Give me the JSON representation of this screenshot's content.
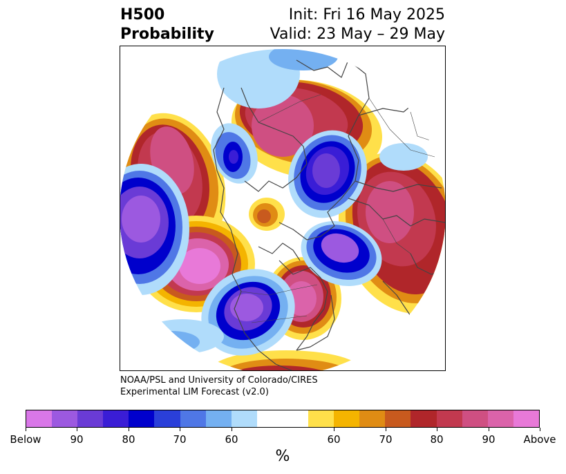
{
  "header": {
    "title_line1": "H500",
    "title_line2": "Probability",
    "init": "Init: Fri 16 May 2025",
    "valid": "Valid: 23 May – 29 May"
  },
  "credit": {
    "line1": "NOAA/PSL and University of Colorado/CIRES",
    "line2": "Experimental LIM Forecast (v2.0)"
  },
  "colorbar": {
    "colors": [
      "#d977e8",
      "#9c59e0",
      "#6a3bd6",
      "#3a1dd6",
      "#0000cc",
      "#2a3fd9",
      "#4f77e6",
      "#74b0f1",
      "#b0dcfb",
      "#ffffff",
      "#ffffff",
      "#ffe04a",
      "#f4b400",
      "#e08c14",
      "#c85a1e",
      "#b0262a",
      "#c2394f",
      "#cf4f82",
      "#db63aa",
      "#e879d8"
    ],
    "ticks": [
      "Below",
      "90",
      "80",
      "70",
      "60",
      "60",
      "70",
      "80",
      "90",
      "Above"
    ],
    "unit": "%"
  },
  "map": {
    "projection": "north-polar-stereographic",
    "coastline_color": "#444444"
  }
}
